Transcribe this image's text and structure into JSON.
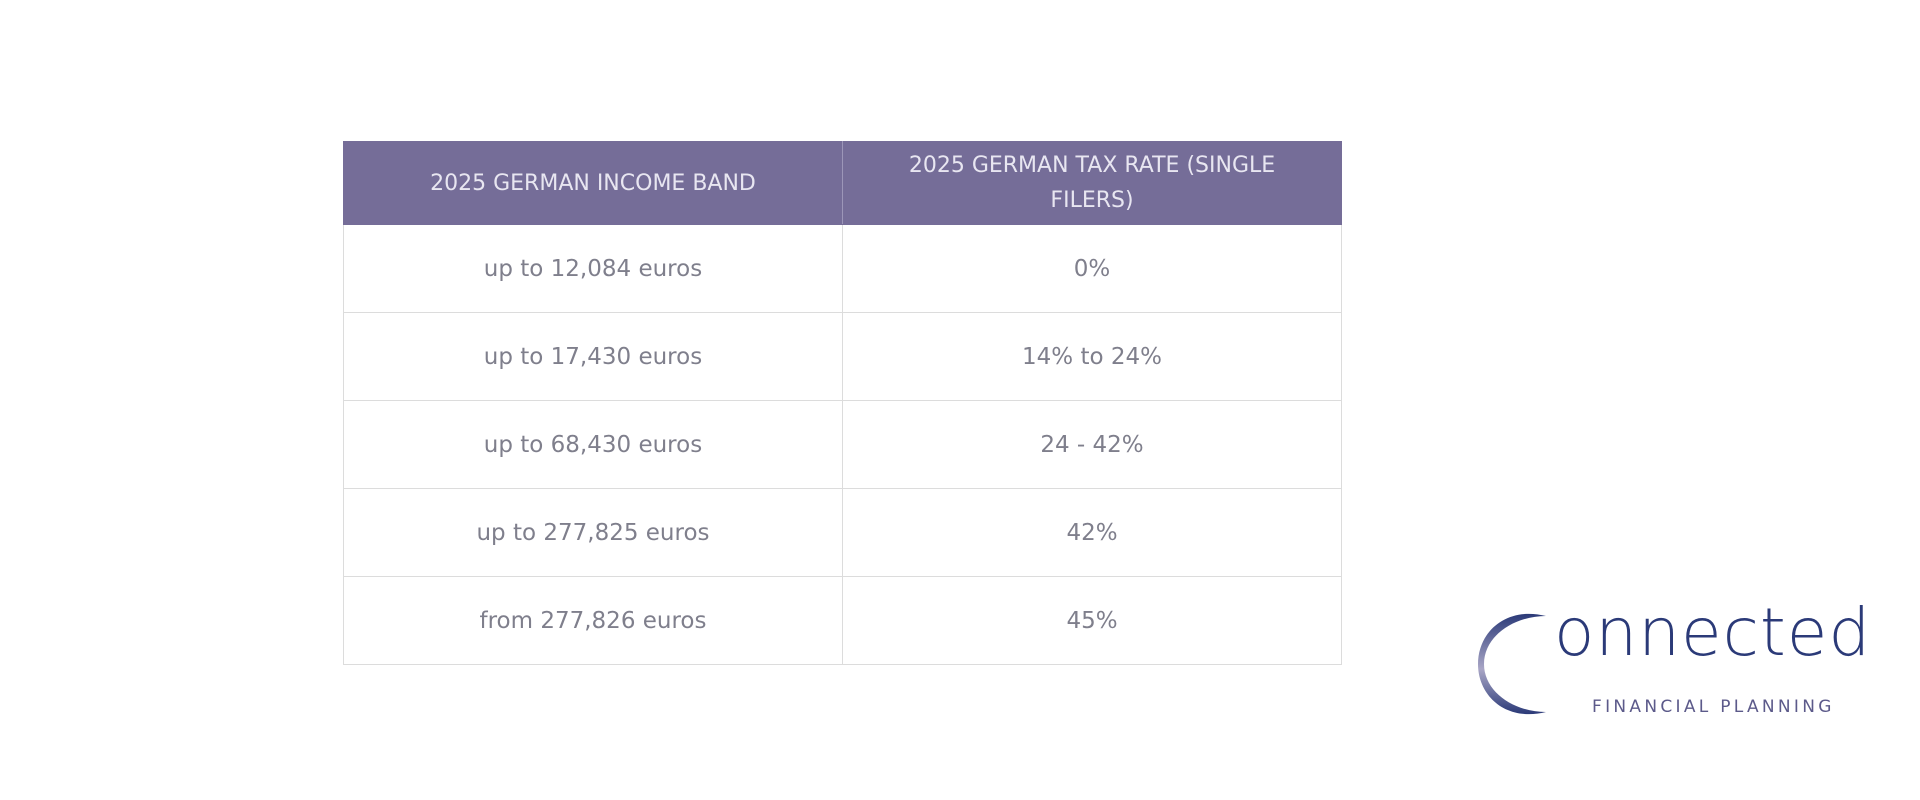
{
  "table": {
    "headers": [
      "2025 GERMAN INCOME BAND",
      "2025 GERMAN TAX RATE (SINGLE FILERS)"
    ],
    "rows": [
      [
        "up to 12,084 euros",
        "0%"
      ],
      [
        "up to 17,430 euros",
        "14% to 24%"
      ],
      [
        "up to 68,430 euros",
        "24 - 42%"
      ],
      [
        "up to 277,825 euros",
        "42%"
      ],
      [
        "from 277,826 euros",
        "45%"
      ]
    ],
    "header_bg": "#756d98"
  },
  "logo": {
    "word": "onnected",
    "subtitle": "FINANCIAL PLANNING",
    "icon": "crescent-c-icon",
    "color": "#2b3a78"
  }
}
